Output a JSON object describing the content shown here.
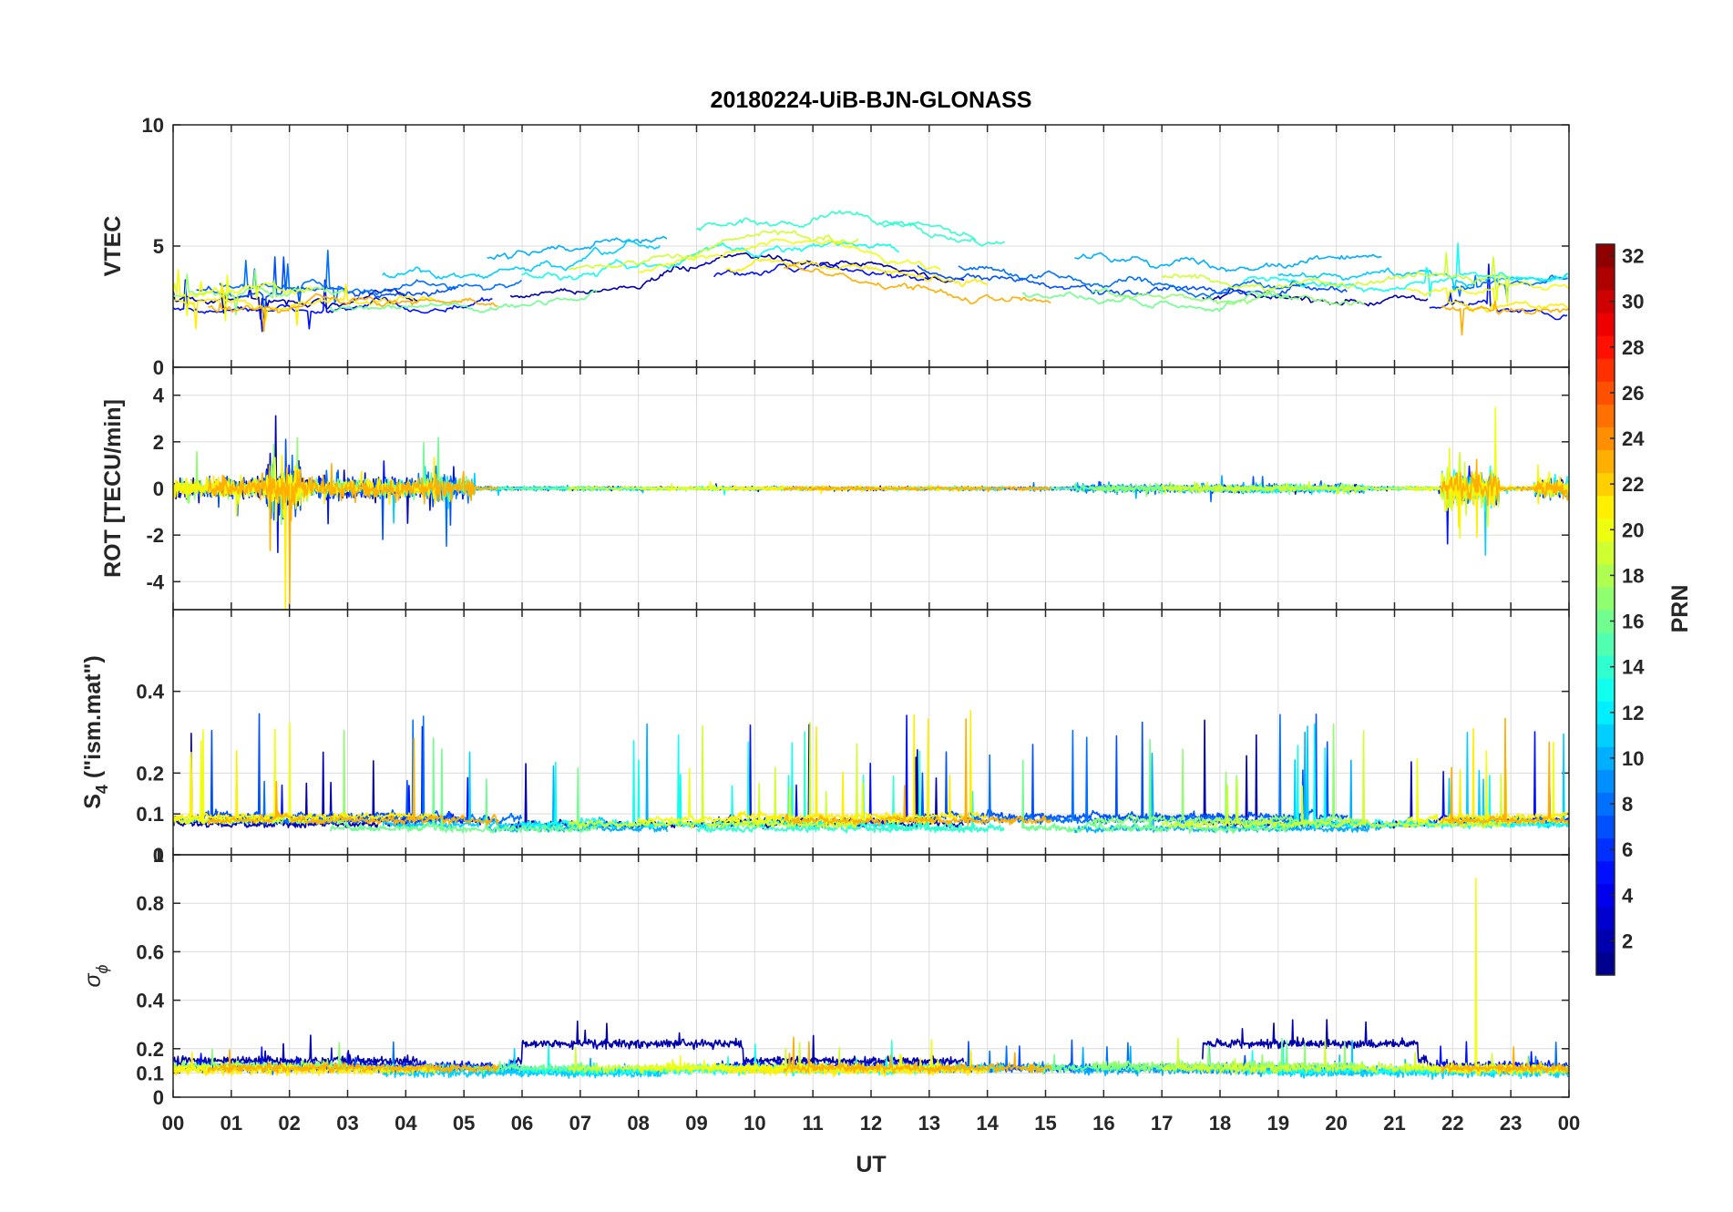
{
  "chart_data": {
    "type": "line",
    "title": "20180224-UiB-BJN-GLONASS",
    "xlabel": "UT",
    "x_tick_labels": [
      "00",
      "01",
      "02",
      "03",
      "04",
      "05",
      "06",
      "07",
      "08",
      "09",
      "10",
      "11",
      "12",
      "13",
      "14",
      "15",
      "16",
      "17",
      "18",
      "19",
      "20",
      "21",
      "22",
      "23",
      "00"
    ],
    "xlim": [
      0,
      24
    ],
    "grid": true,
    "panels": [
      {
        "id": "vtec",
        "ylabel": "VTEC",
        "ylim": [
          0,
          10
        ],
        "y_ticks": [
          0,
          5,
          10
        ],
        "y_tick_labels": [
          "0",
          "5",
          "10"
        ]
      },
      {
        "id": "rot",
        "ylabel": "ROT [TECU/min]",
        "ylim": [
          -5.2,
          5.2
        ],
        "y_ticks": [
          -4,
          -2,
          0,
          2,
          4
        ],
        "y_tick_labels": [
          "-4",
          "-2",
          "0",
          "2",
          "4"
        ]
      },
      {
        "id": "s4",
        "ylabel_main": "S",
        "ylabel_sub": "4",
        "ylabel_rest": " (\"ism.mat\")",
        "ylim": [
          0,
          0.6
        ],
        "y_ticks": [
          0,
          0.1,
          0.2,
          0.4
        ],
        "y_tick_labels": [
          "0",
          "0.1",
          "0.2",
          "0.4"
        ]
      },
      {
        "id": "sigma",
        "ylabel_main": "σ",
        "ylabel_sub": "ϕ",
        "ylim": [
          0,
          1
        ],
        "y_ticks": [
          0,
          0.1,
          0.2,
          0.4,
          0.6,
          0.8,
          1
        ],
        "y_tick_labels": [
          "0",
          "0.1",
          "0.2",
          "0.4",
          "0.6",
          "0.8",
          "1"
        ]
      }
    ],
    "colorbar": {
      "label": "PRN",
      "colormap": "jet",
      "range": [
        1,
        32
      ],
      "levels": 32,
      "tick_values": [
        2,
        4,
        6,
        8,
        10,
        12,
        14,
        16,
        18,
        20,
        22,
        24,
        26,
        28,
        30,
        32
      ],
      "tick_labels": [
        "2",
        "4",
        "6",
        "8",
        "10",
        "12",
        "14",
        "16",
        "18",
        "20",
        "22",
        "24",
        "26",
        "28",
        "30",
        "32"
      ]
    },
    "series": [
      {
        "prn": 2,
        "segments": [
          [
            0.0,
            4.2
          ],
          [
            5.8,
            13.6
          ],
          [
            17.7,
            21.6
          ]
        ],
        "vtec_base": 2.8,
        "s4_base": 0.07,
        "sigma_base": 0.15
      },
      {
        "prn": 5,
        "segments": [
          [
            0.0,
            5.5
          ],
          [
            9.3,
            13.0
          ],
          [
            21.6,
            24.0
          ]
        ],
        "vtec_base": 2.4,
        "s4_base": 0.08,
        "sigma_base": 0.13
      },
      {
        "prn": 7,
        "segments": [
          [
            0.4,
            4.9
          ],
          [
            12.8,
            20.2
          ]
        ],
        "vtec_base": 3.1,
        "s4_base": 0.09,
        "sigma_base": 0.12
      },
      {
        "prn": 8,
        "segments": [
          [
            0.8,
            6.0
          ],
          [
            13.5,
            19.5
          ],
          [
            22.0,
            24.0
          ]
        ],
        "vtec_base": 3.4,
        "s4_base": 0.08,
        "sigma_base": 0.12
      },
      {
        "prn": 10,
        "segments": [
          [
            5.4,
            8.5
          ],
          [
            15.5,
            20.8
          ]
        ],
        "vtec_base": 4.4,
        "s4_base": 0.06,
        "sigma_base": 0.11
      },
      {
        "prn": 11,
        "segments": [
          [
            3.6,
            8.4
          ],
          [
            19.0,
            24.0
          ]
        ],
        "vtec_base": 3.8,
        "s4_base": 0.07,
        "sigma_base": 0.1
      },
      {
        "prn": 13,
        "segments": [
          [
            6.0,
            12.5
          ],
          [
            18.4,
            24.0
          ]
        ],
        "vtec_base": 3.6,
        "s4_base": 0.07,
        "sigma_base": 0.11
      },
      {
        "prn": 14,
        "segments": [
          [
            9.0,
            13.8
          ],
          [
            12.2,
            14.3
          ]
        ],
        "vtec_base": 4.6,
        "s4_base": 0.06,
        "sigma_base": 0.12
      },
      {
        "prn": 16,
        "segments": [
          [
            2.7,
            7.3
          ],
          [
            14.6,
            19.2
          ]
        ],
        "vtec_base": 2.6,
        "s4_base": 0.06,
        "sigma_base": 0.12
      },
      {
        "prn": 17,
        "segments": [
          [
            0.0,
            3.0
          ],
          [
            15.8,
            20.5
          ]
        ],
        "vtec_base": 2.9,
        "s4_base": 0.08,
        "sigma_base": 0.13
      },
      {
        "prn": 19,
        "segments": [
          [
            6.8,
            11.8
          ],
          [
            17.0,
            23.0
          ]
        ],
        "vtec_base": 3.7,
        "s4_base": 0.07,
        "sigma_base": 0.12
      },
      {
        "prn": 20,
        "segments": [
          [
            0.0,
            2.4
          ],
          [
            8.0,
            13.2
          ],
          [
            21.2,
            24.0
          ]
        ],
        "vtec_base": 3.2,
        "s4_base": 0.08,
        "sigma_base": 0.12
      },
      {
        "prn": 21,
        "segments": [
          [
            0.0,
            4.5
          ],
          [
            9.5,
            14.0
          ],
          [
            21.9,
            24.0
          ]
        ],
        "vtec_base": 2.7,
        "s4_base": 0.09,
        "sigma_base": 0.11
      },
      {
        "prn": 23,
        "segments": [
          [
            0.6,
            5.6
          ],
          [
            10.5,
            15.1
          ],
          [
            21.8,
            24.0
          ]
        ],
        "vtec_base": 2.5,
        "s4_base": 0.08,
        "sigma_base": 0.12
      }
    ]
  }
}
